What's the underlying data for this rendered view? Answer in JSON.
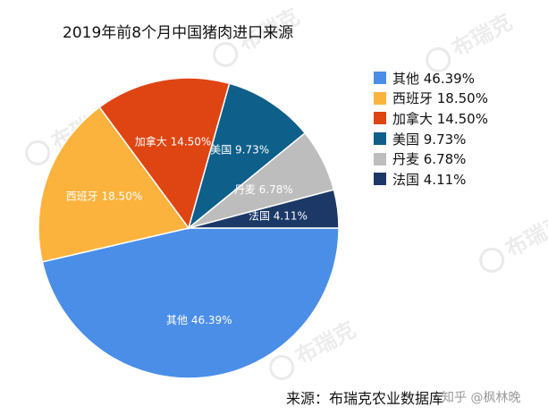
{
  "watermark": "布瑞克",
  "source_note": "来源：布瑞克农业数据库",
  "credit": "知乎 @枫林晚",
  "chart_data": {
    "type": "pie",
    "title": "2019年前8个月中国猪肉进口来源",
    "legend_position": "right",
    "slices": [
      {
        "name": "其他",
        "value": 46.39,
        "label": "46.39%",
        "color": "#4a8ee8",
        "label_color": "#ffffff"
      },
      {
        "name": "西班牙",
        "value": 18.5,
        "label": "18.50%",
        "color": "#fbb33e",
        "label_color": "#ffffff"
      },
      {
        "name": "加拿大",
        "value": 14.5,
        "label": "14.50%",
        "color": "#df4512",
        "label_color": "#ffffff"
      },
      {
        "name": "美国",
        "value": 9.73,
        "label": "9.73%",
        "color": "#0e5f8a",
        "label_color": "#ffffff"
      },
      {
        "name": "丹麦",
        "value": 6.78,
        "label": "6.78%",
        "color": "#bdbdbd",
        "label_color": "#ffffff"
      },
      {
        "name": "法国",
        "value": 4.11,
        "label": "4.11%",
        "color": "#1b3866",
        "label_color": "#ffffff"
      }
    ]
  }
}
